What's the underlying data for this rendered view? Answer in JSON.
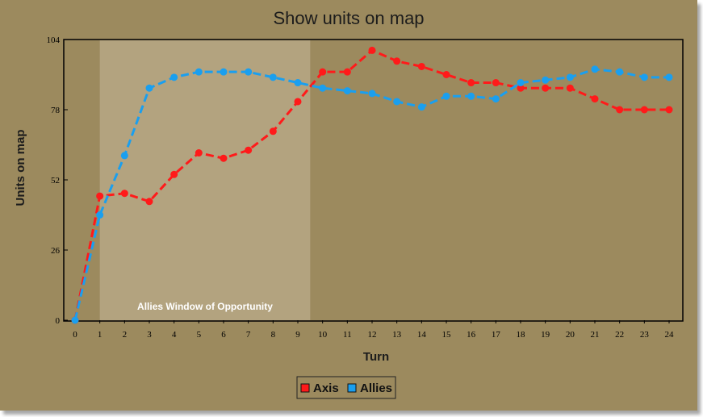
{
  "chart_data": {
    "type": "line",
    "title": "Show units on map",
    "xlabel": "Turn",
    "ylabel": "Units on map",
    "x": [
      0,
      1,
      2,
      3,
      4,
      5,
      6,
      7,
      8,
      9,
      10,
      11,
      12,
      13,
      14,
      15,
      16,
      17,
      18,
      19,
      20,
      21,
      22,
      23,
      24
    ],
    "xlim": [
      0,
      24
    ],
    "ylim": [
      0,
      104
    ],
    "yticks": [
      0,
      26,
      52,
      78,
      104
    ],
    "series": [
      {
        "name": "Axis",
        "color": "#ff1a1a",
        "values": [
          0,
          46,
          47,
          44,
          54,
          62,
          60,
          63,
          70,
          81,
          92,
          92,
          100,
          96,
          94,
          91,
          88,
          88,
          86,
          86,
          86,
          82,
          78,
          78,
          78
        ]
      },
      {
        "name": "Allies",
        "color": "#1a9fef",
        "values": [
          0,
          39,
          61,
          86,
          90,
          92,
          92,
          92,
          90,
          88,
          86,
          85,
          84,
          81,
          79,
          83,
          83,
          82,
          88,
          89,
          90,
          93,
          92,
          90,
          90
        ]
      }
    ],
    "highlight_band": {
      "x_start": 1,
      "x_end": 9.5,
      "label": "Allies Window of Opportunity",
      "color": "#b3a37f"
    },
    "legend_position": "bottom-center",
    "grid": false,
    "line_style": "dashed",
    "marker": "circle"
  },
  "colors": {
    "background": "#9c8a5e",
    "plot_area": "#9c8a5e",
    "axis": "#000000"
  }
}
